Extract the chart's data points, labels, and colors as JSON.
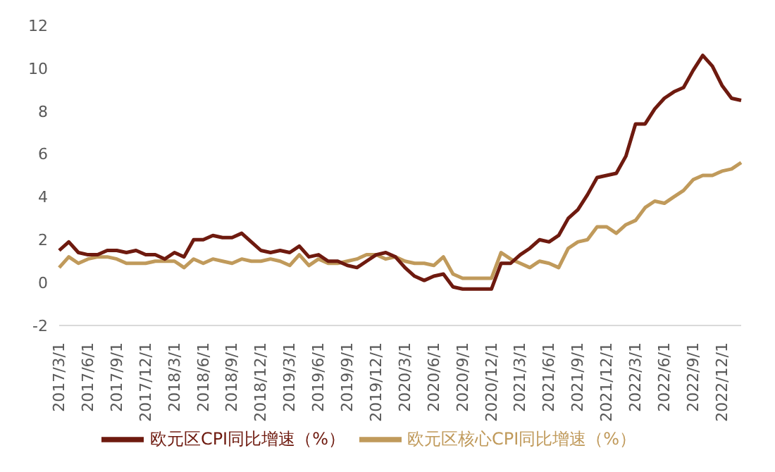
{
  "chart_data": {
    "type": "line",
    "categories": [
      "2017/3/1",
      null,
      null,
      "2017/6/1",
      null,
      null,
      "2017/9/1",
      null,
      null,
      "2017/12/1",
      null,
      null,
      "2018/3/1",
      null,
      null,
      "2018/6/1",
      null,
      null,
      "2018/9/1",
      null,
      null,
      "2018/12/1",
      null,
      null,
      "2019/3/1",
      null,
      null,
      "2019/6/1",
      null,
      null,
      "2019/9/1",
      null,
      null,
      "2019/12/1",
      null,
      null,
      "2020/3/1",
      null,
      null,
      "2020/6/1",
      null,
      null,
      "2020/9/1",
      null,
      null,
      "2020/12/1",
      null,
      null,
      "2021/3/1",
      null,
      null,
      "2021/6/1",
      null,
      null,
      "2021/9/1",
      null,
      null,
      "2021/12/1",
      null,
      null,
      "2022/3/1",
      null,
      null,
      "2022/6/1",
      null,
      null,
      "2022/9/1",
      null,
      null,
      "2022/12/1",
      null,
      null
    ],
    "series": [
      {
        "name": "欧元区核心CPI同比增速（%）",
        "color": "#c09a5b",
        "values": [
          0.7,
          1.2,
          0.9,
          1.1,
          1.2,
          1.2,
          1.1,
          0.9,
          0.9,
          0.9,
          1.0,
          1.0,
          1.0,
          0.7,
          1.1,
          0.9,
          1.1,
          1.0,
          0.9,
          1.1,
          1.0,
          1.0,
          1.1,
          1.0,
          0.8,
          1.3,
          0.8,
          1.1,
          0.9,
          0.9,
          1.0,
          1.1,
          1.3,
          1.3,
          1.1,
          1.2,
          1.0,
          0.9,
          0.9,
          0.8,
          1.2,
          0.4,
          0.2,
          0.2,
          0.2,
          0.2,
          1.4,
          1.1,
          0.9,
          0.7,
          1.0,
          0.9,
          0.7,
          1.6,
          1.9,
          2.0,
          2.6,
          2.6,
          2.3,
          2.7,
          2.9,
          3.5,
          3.8,
          3.7,
          4.0,
          4.3,
          4.8,
          5.0,
          5.0,
          5.2,
          5.3,
          5.6
        ]
      },
      {
        "name": "欧元区CPI同比增速（%）",
        "color": "#6e1a0f",
        "values": [
          1.5,
          1.9,
          1.4,
          1.3,
          1.3,
          1.5,
          1.5,
          1.4,
          1.5,
          1.3,
          1.3,
          1.1,
          1.4,
          1.2,
          2.0,
          2.0,
          2.2,
          2.1,
          2.1,
          2.3,
          1.9,
          1.5,
          1.4,
          1.5,
          1.4,
          1.7,
          1.2,
          1.3,
          1.0,
          1.0,
          0.8,
          0.7,
          1.0,
          1.3,
          1.4,
          1.2,
          0.7,
          0.3,
          0.1,
          0.3,
          0.4,
          -0.2,
          -0.3,
          -0.3,
          -0.3,
          -0.3,
          0.9,
          0.9,
          1.3,
          1.6,
          2.0,
          1.9,
          2.2,
          3.0,
          3.4,
          4.1,
          4.9,
          5.0,
          5.1,
          5.9,
          7.4,
          7.4,
          8.1,
          8.6,
          8.9,
          9.1,
          9.9,
          10.6,
          10.1,
          9.2,
          8.6,
          8.5
        ]
      }
    ],
    "ylim": [
      -2,
      12
    ],
    "yticks": [
      -2,
      0,
      2,
      4,
      6,
      8,
      10,
      12
    ],
    "legend": "bottom"
  }
}
